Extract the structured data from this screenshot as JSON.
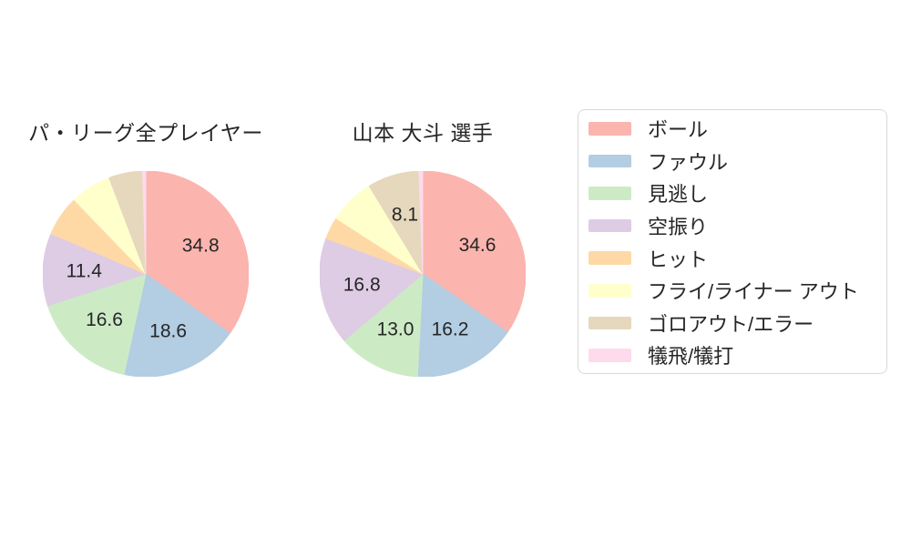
{
  "page": {
    "background": "#ffffff",
    "text_color": "#262626"
  },
  "chart_data": [
    {
      "type": "pie",
      "title": "パ・リーグ全プレイヤー",
      "categories": [
        "ボール",
        "ファウル",
        "見逃し",
        "空振り",
        "ヒット",
        "フライ/ライナー アウト",
        "ゴロアウト/エラー",
        "犠飛/犠打"
      ],
      "values": [
        34.8,
        18.6,
        16.6,
        11.4,
        6.4,
        6.4,
        5.3,
        0.5
      ],
      "labels_shown": [
        "34.8",
        "18.6",
        "16.6",
        "11.4"
      ],
      "label_threshold": 8,
      "value_format": "one-decimal",
      "start_angle_deg": 90,
      "direction": "clockwise",
      "legend_position": "right"
    },
    {
      "type": "pie",
      "title": "山本 大斗  選手",
      "categories": [
        "ボール",
        "ファウル",
        "見逃し",
        "空振り",
        "ヒット",
        "フライ/ライナー アウト",
        "ゴロアウト/エラー",
        "犠飛/犠打"
      ],
      "values": [
        34.6,
        16.2,
        13.0,
        16.8,
        3.5,
        7.2,
        8.1,
        0.6
      ],
      "labels_shown": [
        "34.6",
        "16.2",
        "13.0",
        "16.8",
        "8.1"
      ],
      "label_threshold": 8,
      "value_format": "one-decimal",
      "start_angle_deg": 90,
      "direction": "clockwise",
      "legend_position": "right"
    }
  ],
  "legend": {
    "items": [
      {
        "key": "ball",
        "label": "ボール",
        "color": "#fbb4ae"
      },
      {
        "key": "foul",
        "label": "ファウル",
        "color": "#b3cde3"
      },
      {
        "key": "called-strike",
        "label": "見逃し",
        "color": "#ccebc5"
      },
      {
        "key": "swinging-strike",
        "label": "空振り",
        "color": "#decbe4"
      },
      {
        "key": "hit",
        "label": "ヒット",
        "color": "#fed9a6"
      },
      {
        "key": "fly-liner-out",
        "label": "フライ/ライナー アウト",
        "color": "#ffffcc"
      },
      {
        "key": "ground-out-error",
        "label": "ゴロアウト/エラー",
        "color": "#e5d8bd"
      },
      {
        "key": "sac-fly-bunt",
        "label": "犠飛/犠打",
        "color": "#fddaec"
      }
    ],
    "border_color": "#d9d9d9"
  }
}
